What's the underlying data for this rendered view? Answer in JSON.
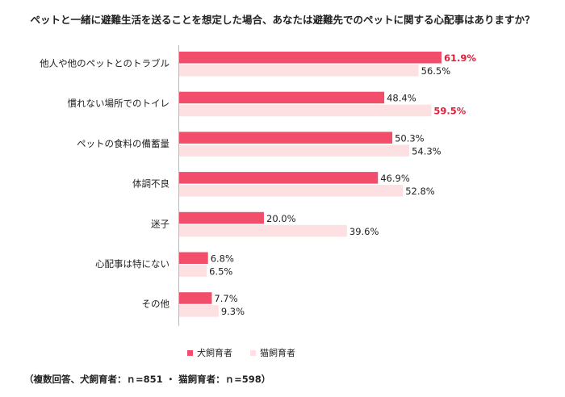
{
  "title": "ペットと一緒に避難生活を送ることを想定した場合、あなたは避難先でのペットに関する心配事はありますか？",
  "footnote": "（複数回答、犬飼育者：ｎ=851 ・ 猫飼育者：ｎ=598）",
  "colors": {
    "dog": "#f24d6b",
    "cat": "#fde0e2",
    "highlight": "#e0203a",
    "axis": "#bbbbbb"
  },
  "chart_data": {
    "type": "bar",
    "orientation": "horizontal",
    "categories": [
      "他人や他のペットとのトラブル",
      "慣れない場所でのトイレ",
      "ペットの食料の備蓄量",
      "体調不良",
      "迷子",
      "心配事は特にない",
      "その他"
    ],
    "series": [
      {
        "name": "犬飼育者",
        "values": [
          61.9,
          48.4,
          50.3,
          46.9,
          20.0,
          6.8,
          7.7
        ],
        "labels": [
          "61.9%",
          "48.4%",
          "50.3%",
          "46.9%",
          "20.0%",
          "6.8%",
          "7.7%"
        ]
      },
      {
        "name": "猫飼育者",
        "values": [
          56.5,
          59.5,
          54.3,
          52.8,
          39.6,
          6.5,
          9.3
        ],
        "labels": [
          "56.5%",
          "59.5%",
          "54.3%",
          "52.8%",
          "39.6%",
          "6.5%",
          "9.3%"
        ]
      }
    ],
    "highlighted": [
      [
        0,
        0
      ],
      [
        1,
        1
      ]
    ],
    "xlim": [
      0,
      100
    ],
    "legend_position": "bottom"
  }
}
